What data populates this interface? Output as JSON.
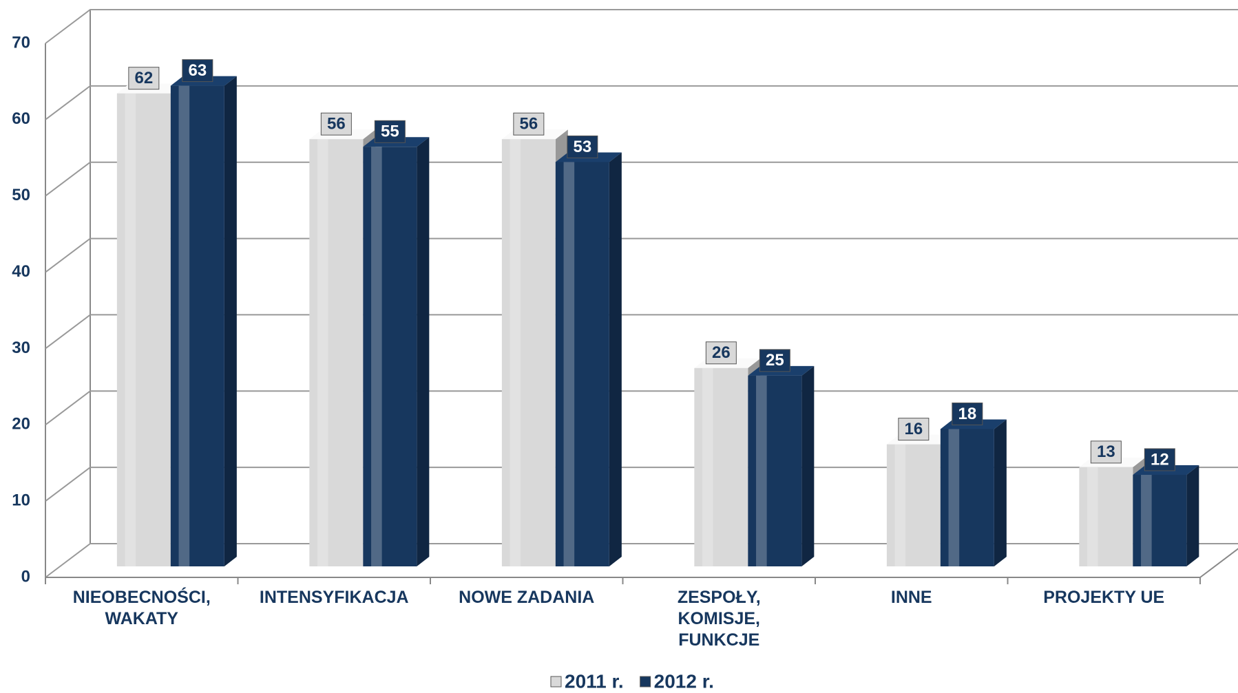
{
  "chart_data": {
    "type": "bar",
    "categories": [
      "NIEOBECNOŚCI,\nWAKATY",
      "INTENSYFIKACJA",
      "NOWE ZADANIA",
      "ZESPOŁY,\nKOMISJE,\nFUNKCJE",
      "INNE",
      "PROJEKTY UE"
    ],
    "series": [
      {
        "name": "2011 r.",
        "color": "#d9d9d9",
        "values": [
          62,
          56,
          56,
          26,
          16,
          13
        ]
      },
      {
        "name": "2012 r.",
        "color": "#17375e",
        "values": [
          63,
          55,
          53,
          25,
          18,
          12
        ]
      }
    ],
    "ylim": [
      0,
      70
    ],
    "yticks": [
      0,
      10,
      20,
      30,
      40,
      50,
      60,
      70
    ],
    "grid": true,
    "legend": "bottom"
  }
}
